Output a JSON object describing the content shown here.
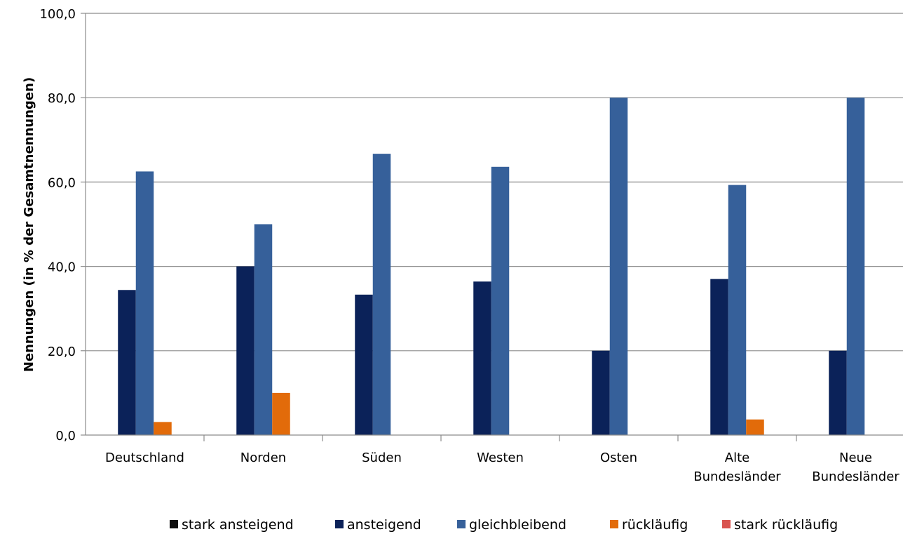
{
  "chart_data": {
    "type": "bar",
    "title": "",
    "xlabel": "",
    "ylabel": "Nennungen  (in % der Gesamtnennungen)",
    "ylim": [
      0,
      100
    ],
    "yticks": [
      "0,0",
      "20,0",
      "40,0",
      "60,0",
      "80,0",
      "100,0"
    ],
    "categories": [
      [
        "Deutschland"
      ],
      [
        "Norden"
      ],
      [
        "Süden"
      ],
      [
        "Westen"
      ],
      [
        "Osten"
      ],
      [
        "Alte",
        "Bundesländer"
      ],
      [
        "Neue",
        "Bundesländer"
      ]
    ],
    "series": [
      {
        "name": "stark ansteigend",
        "color": "#0d0d0d",
        "values": [
          0,
          0,
          0,
          0,
          0,
          0,
          0
        ]
      },
      {
        "name": "ansteigend",
        "color": "#0b2259",
        "values": [
          34.4,
          40.0,
          33.3,
          36.4,
          20.0,
          37.0,
          20.0
        ]
      },
      {
        "name": "gleichbleibend",
        "color": "#36609a",
        "values": [
          62.5,
          50.0,
          66.7,
          63.6,
          80.0,
          59.3,
          80.0
        ]
      },
      {
        "name": "rückläufig",
        "color": "#e26b0a",
        "values": [
          3.1,
          10.0,
          0,
          0,
          0,
          3.7,
          0
        ]
      },
      {
        "name": "stark rückläufig",
        "color": "#d9534f",
        "values": [
          0,
          0,
          0,
          0,
          0,
          0,
          0
        ]
      }
    ],
    "grid": true,
    "legend_position": "bottom"
  }
}
